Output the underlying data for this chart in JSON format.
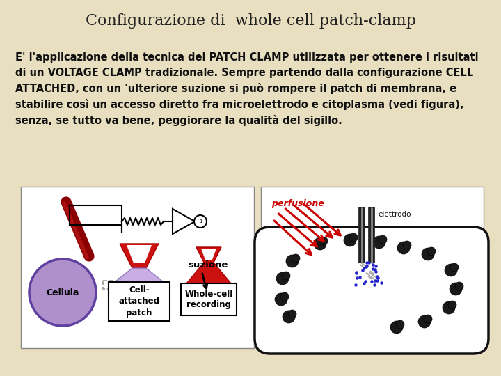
{
  "background_color": "#e8dfc0",
  "title": "Configurazione di  whole cell patch-clamp",
  "title_fontsize": 16,
  "title_color": "#222222",
  "body_text": "E' l'applicazione della tecnica del PATCH CLAMP utilizzata per ottenere i risultati\ndi un VOLTAGE CLAMP tradizionale. Sempre partendo dalla configurazione CELL\nATTACHED, con un 'ulteriore suzione si può rompere il patch di membrana, e\nstabilire così un accesso diretto fra microelettrodo e citoplasma (vedi figura),\nsenza, se tutto va bene, peggiorare la qualità del sigillo.",
  "body_fontsize": 10.5,
  "body_color": "#111111",
  "left_label_cellula": "Cellula",
  "left_label_cell_attached": "Cell-\nattached\npatch",
  "left_label_whole_cell": "Whole-cell\nrecording",
  "left_label_suzione": "suzione",
  "right_label_perfusione": "perfusione",
  "right_label_elettrodo": "elettrodo",
  "perfusione_color": "#cc0000",
  "elettrodo_color": "#111111",
  "box_face": "#ffffff",
  "box_edge": "#888888"
}
